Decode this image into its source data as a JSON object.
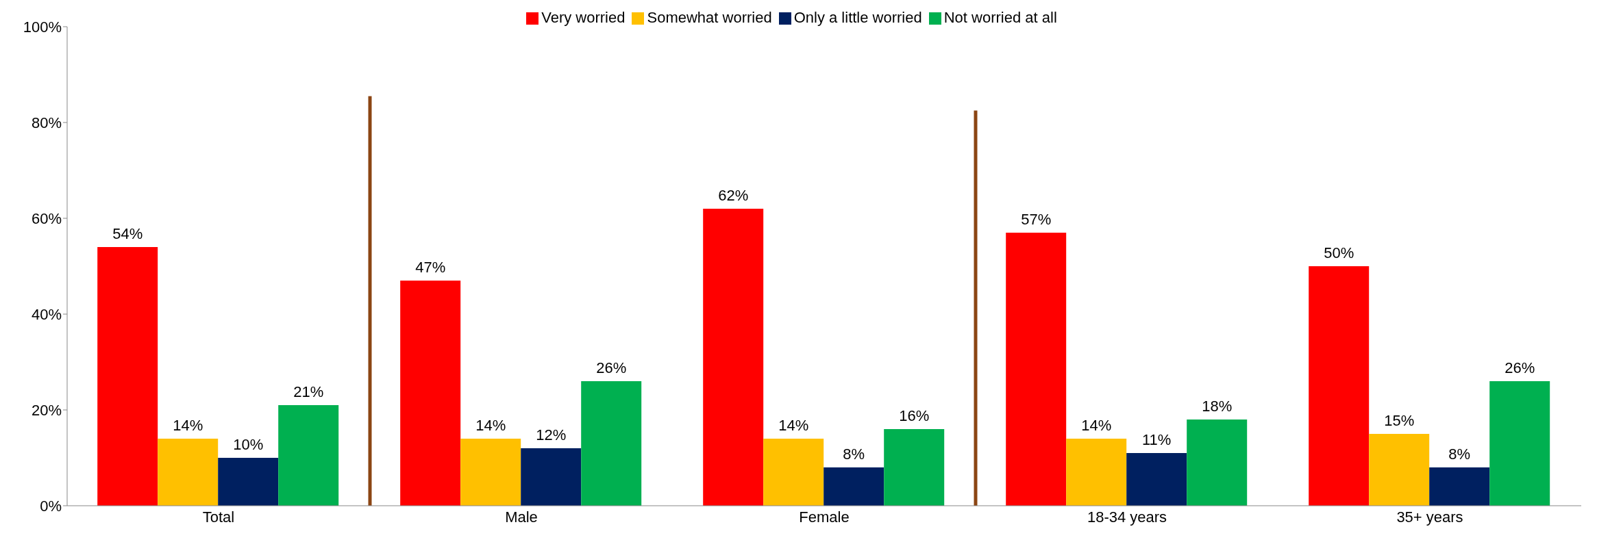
{
  "chart_data": {
    "type": "bar",
    "categories": [
      "Total",
      "Male",
      "Female",
      "18-34 years",
      "35+ years"
    ],
    "series": [
      {
        "name": "Very worried",
        "color": "#ff0000",
        "values": [
          54,
          47,
          62,
          57,
          50
        ],
        "value_labels": [
          "54%",
          "47%",
          "62%",
          "57%",
          "50%"
        ]
      },
      {
        "name": "Somewhat worried",
        "color": "#ffc000",
        "values": [
          14,
          14,
          14,
          14,
          15
        ],
        "value_labels": [
          "14%",
          "14%",
          "14%",
          "14%",
          "15%"
        ]
      },
      {
        "name": "Only a little worried",
        "color": "#002060",
        "values": [
          10,
          12,
          8,
          11,
          8
        ],
        "value_labels": [
          "10%",
          "12%",
          "8%",
          "11%",
          "8%"
        ]
      },
      {
        "name": "Not worried at all",
        "color": "#00b050",
        "values": [
          21,
          26,
          16,
          18,
          26
        ],
        "value_labels": [
          "21%",
          "26%",
          "16%",
          "18%",
          "26%"
        ]
      }
    ],
    "ylim": [
      0,
      100
    ],
    "yticks": [
      {
        "value": 0,
        "label": "0%"
      },
      {
        "value": 20,
        "label": "20%"
      },
      {
        "value": 40,
        "label": "40%"
      },
      {
        "value": 60,
        "label": "60%"
      },
      {
        "value": 80,
        "label": "80%"
      },
      {
        "value": 100,
        "label": "100%"
      }
    ],
    "grid": false,
    "legend": "top"
  }
}
